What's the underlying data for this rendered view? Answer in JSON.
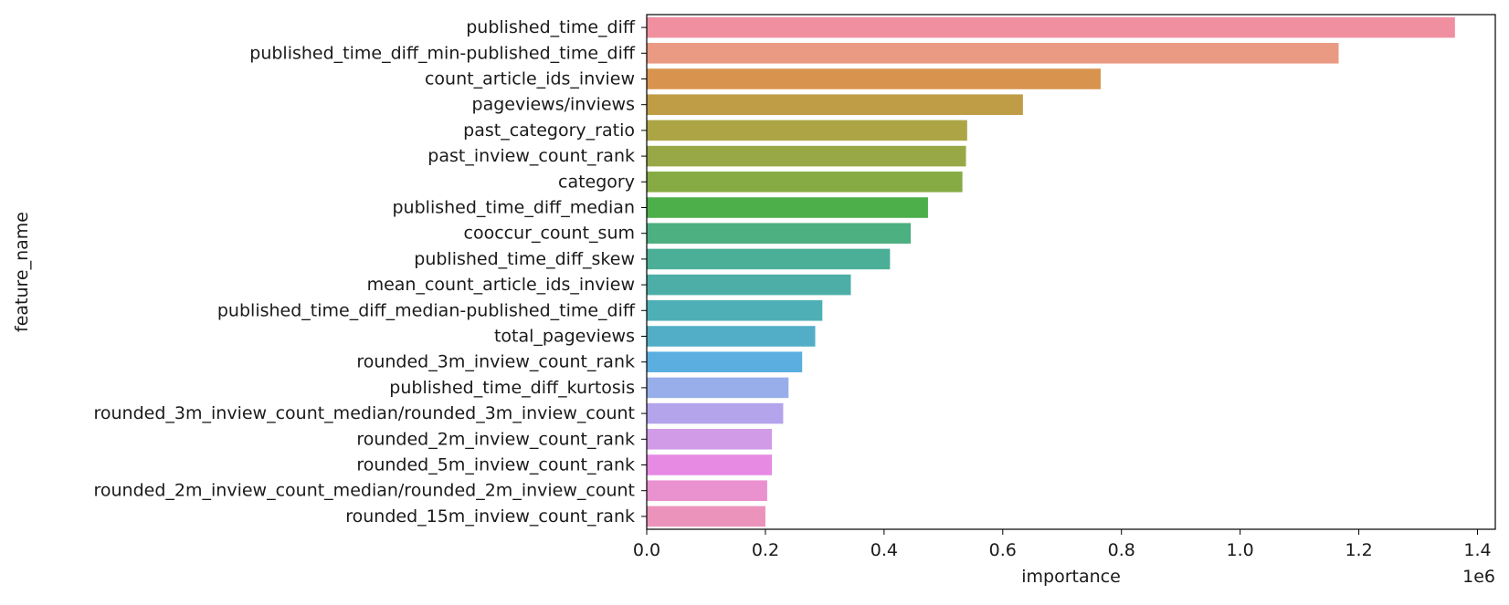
{
  "chart_data": {
    "type": "bar",
    "orientation": "horizontal",
    "title": "",
    "xlabel": "importance",
    "ylabel": "feature_name",
    "x_offset_label": "1e6",
    "xlim": [
      0,
      1.43
    ],
    "x_ticks": [
      0.0,
      0.2,
      0.4,
      0.6,
      0.8,
      1.0,
      1.2,
      1.4
    ],
    "x_tick_labels": [
      "0.0",
      "0.2",
      "0.4",
      "0.6",
      "0.8",
      "1.0",
      "1.2",
      "1.4"
    ],
    "grid": false,
    "categories": [
      "published_time_diff",
      "published_time_diff_min-published_time_diff",
      "count_article_ids_inview",
      "pageviews/inviews",
      "past_category_ratio",
      "past_inview_count_rank",
      "category",
      "published_time_diff_median",
      "cooccur_count_sum",
      "published_time_diff_skew",
      "mean_count_article_ids_inview",
      "published_time_diff_median-published_time_diff",
      "total_pageviews",
      "rounded_3m_inview_count_rank",
      "published_time_diff_kurtosis",
      "rounded_3m_inview_count_median/rounded_3m_inview_count",
      "rounded_2m_inview_count_rank",
      "rounded_5m_inview_count_rank",
      "rounded_2m_inview_count_median/rounded_2m_inview_count",
      "rounded_15m_inview_count_rank"
    ],
    "values": [
      1.362,
      1.166,
      0.765,
      0.634,
      0.54,
      0.538,
      0.532,
      0.474,
      0.445,
      0.41,
      0.344,
      0.296,
      0.284,
      0.262,
      0.239,
      0.23,
      0.211,
      0.211,
      0.203,
      0.2
    ],
    "colors": [
      "#f08fa0",
      "#ea9a82",
      "#d8944f",
      "#bf9c46",
      "#ada545",
      "#99a846",
      "#86ab45",
      "#4daf4a",
      "#4cb081",
      "#4baf97",
      "#4caea7",
      "#4fafb6",
      "#52aec6",
      "#5aaee0",
      "#97aeea",
      "#b3a4eb",
      "#d19be8",
      "#e68ae4",
      "#ea91cf",
      "#eb93bb"
    ]
  }
}
